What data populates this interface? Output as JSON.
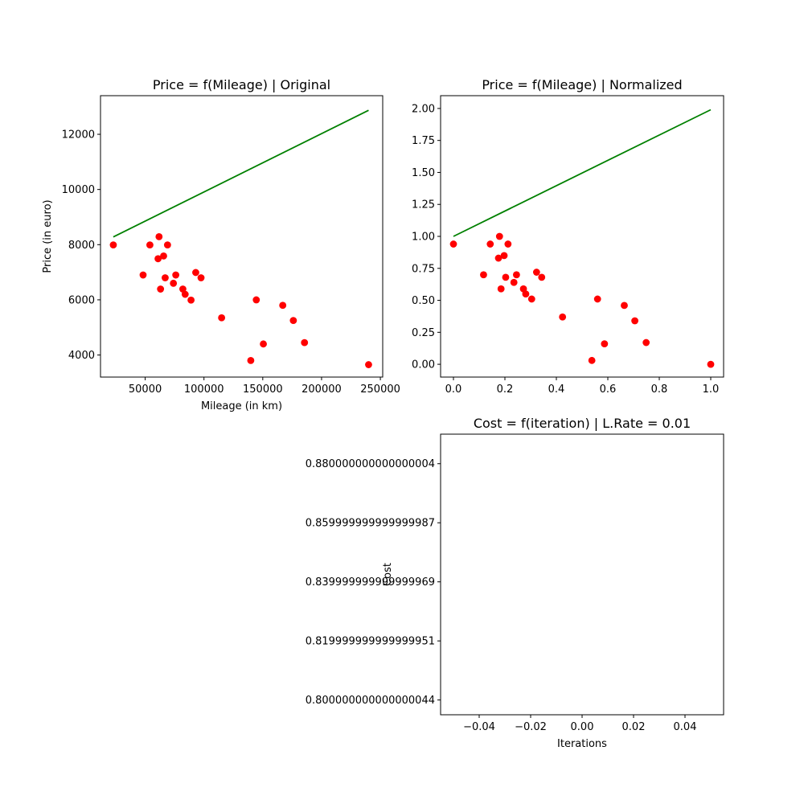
{
  "chart_data": [
    {
      "type": "scatter",
      "title": "Price = f(Mileage) | Original",
      "xlabel": "Mileage (in km)",
      "ylabel": "Price (in euro)",
      "xlim": [
        12000,
        252000
      ],
      "ylim": [
        3200,
        13400
      ],
      "xticks": [
        50000,
        100000,
        150000,
        200000,
        250000
      ],
      "yticks": [
        4000,
        6000,
        8000,
        10000,
        12000
      ],
      "grid": false,
      "series": [
        {
          "kind": "scatter",
          "color": "#ff0000",
          "points": [
            [
              22899,
              7990
            ],
            [
              48235,
              6900
            ],
            [
              54000,
              7990
            ],
            [
              61789,
              8290
            ],
            [
              60949,
              7490
            ],
            [
              63060,
              6390
            ],
            [
              65674,
              7590
            ],
            [
              67000,
              6800
            ],
            [
              69000,
              7990
            ],
            [
              74000,
              6600
            ],
            [
              76025,
              6900
            ],
            [
              82029,
              6390
            ],
            [
              84000,
              6200
            ],
            [
              89000,
              5990
            ],
            [
              93000,
              6990
            ],
            [
              97500,
              6800
            ],
            [
              115000,
              5350
            ],
            [
              139800,
              3800
            ],
            [
              144500,
              5999
            ],
            [
              150500,
              4400
            ],
            [
              167000,
              5800
            ],
            [
              176000,
              5250
            ],
            [
              185500,
              4450
            ],
            [
              240000,
              3650
            ]
          ]
        },
        {
          "kind": "line",
          "color": "#008000",
          "points": [
            [
              22899,
              8280
            ],
            [
              240000,
              12870
            ]
          ]
        }
      ]
    },
    {
      "type": "scatter",
      "title": "Price = f(Mileage) | Normalized",
      "xlabel": "",
      "ylabel": "",
      "xlim": [
        -0.05,
        1.05
      ],
      "ylim": [
        -0.1,
        2.1
      ],
      "xticks": [
        0.0,
        0.2,
        0.4,
        0.6,
        0.8,
        1.0
      ],
      "yticks": [
        0.0,
        0.25,
        0.5,
        0.75,
        1.0,
        1.25,
        1.5,
        1.75,
        2.0
      ],
      "grid": false,
      "series": [
        {
          "kind": "scatter",
          "color": "#ff0000",
          "points": [
            [
              0.0,
              0.94
            ],
            [
              0.117,
              0.7
            ],
            [
              0.143,
              0.94
            ],
            [
              0.179,
              1.0
            ],
            [
              0.175,
              0.83
            ],
            [
              0.185,
              0.59
            ],
            [
              0.197,
              0.85
            ],
            [
              0.203,
              0.68
            ],
            [
              0.212,
              0.94
            ],
            [
              0.235,
              0.64
            ],
            [
              0.245,
              0.7
            ],
            [
              0.272,
              0.59
            ],
            [
              0.281,
              0.55
            ],
            [
              0.304,
              0.51
            ],
            [
              0.323,
              0.72
            ],
            [
              0.343,
              0.68
            ],
            [
              0.424,
              0.37
            ],
            [
              0.538,
              0.03
            ],
            [
              0.56,
              0.51
            ],
            [
              0.587,
              0.16
            ],
            [
              0.664,
              0.46
            ],
            [
              0.705,
              0.34
            ],
            [
              0.749,
              0.17
            ],
            [
              1.0,
              0.0
            ]
          ]
        },
        {
          "kind": "line",
          "color": "#008000",
          "points": [
            [
              0.0,
              1.0
            ],
            [
              1.0,
              1.99
            ]
          ]
        }
      ]
    },
    {
      "type": "line",
      "title": "Cost = f(iteration) | L.Rate = 0.01",
      "xlabel": "Iterations",
      "ylabel": "Cost",
      "xlim": [
        -0.055,
        0.055
      ],
      "ylim": [
        0.795,
        0.89
      ],
      "xticks": [
        -0.04,
        -0.02,
        0.0,
        0.02,
        0.04
      ],
      "yticks": [
        0.8,
        0.82,
        0.84,
        0.86,
        0.88
      ],
      "grid": false,
      "series": []
    }
  ]
}
